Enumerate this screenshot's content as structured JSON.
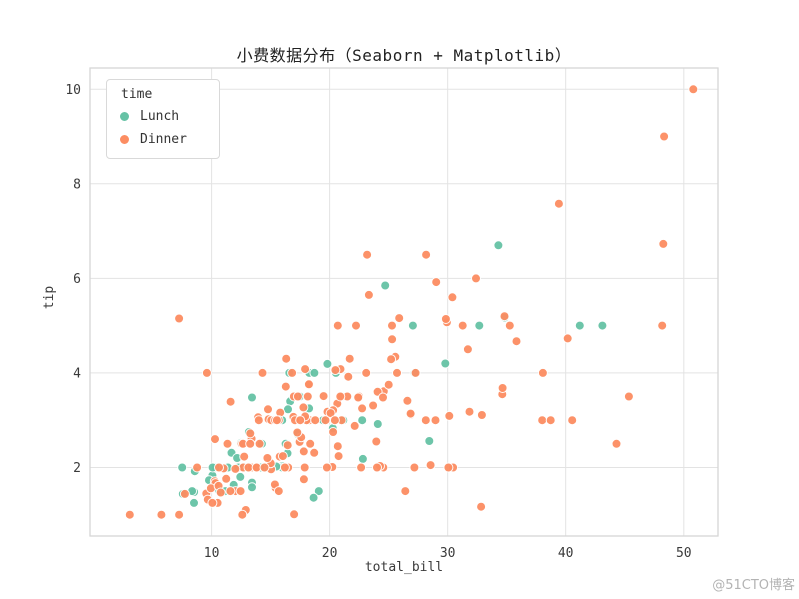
{
  "page": {
    "watermark": "@51CTO博客"
  },
  "chart_data": {
    "type": "scatter",
    "title": "小费数据分布（Seaborn + Matplotlib）",
    "xlabel": "total_bill",
    "ylabel": "tip",
    "xlim": [
      -0.3,
      52.9
    ],
    "ylim": [
      0.55,
      10.45
    ],
    "x_ticks": [
      10,
      20,
      30,
      40,
      50
    ],
    "y_ticks": [
      2,
      4,
      6,
      8,
      10
    ],
    "grid": true,
    "legend": {
      "title": "time",
      "position": "upper-left"
    },
    "series": [
      {
        "name": "Lunch",
        "color": "#66c2a5",
        "points": [
          [
            27.2,
            4.0
          ],
          [
            22.76,
            3.0
          ],
          [
            17.29,
            2.71
          ],
          [
            19.44,
            3.0
          ],
          [
            16.66,
            3.4
          ],
          [
            10.07,
            1.83
          ],
          [
            32.68,
            5.0
          ],
          [
            15.98,
            2.03
          ],
          [
            34.83,
            5.17
          ],
          [
            13.03,
            2.0
          ],
          [
            18.28,
            4.0
          ],
          [
            24.71,
            5.85
          ],
          [
            21.16,
            3.0
          ],
          [
            10.65,
            1.5
          ],
          [
            12.43,
            1.8
          ],
          [
            24.08,
            2.92
          ],
          [
            11.69,
            2.31
          ],
          [
            13.42,
            1.68
          ],
          [
            14.26,
            2.5
          ],
          [
            15.95,
            2.0
          ],
          [
            12.48,
            2.52
          ],
          [
            29.8,
            4.2
          ],
          [
            8.52,
            1.48
          ],
          [
            14.52,
            2.0
          ],
          [
            11.38,
            2.0
          ],
          [
            22.82,
            2.18
          ],
          [
            19.08,
            1.5
          ],
          [
            20.27,
            2.83
          ],
          [
            11.17,
            1.5
          ],
          [
            12.26,
            2.0
          ],
          [
            18.26,
            3.25
          ],
          [
            8.51,
            1.25
          ],
          [
            10.33,
            2.0
          ],
          [
            14.15,
            2.0
          ],
          [
            16.0,
            2.0
          ],
          [
            13.16,
            2.75
          ],
          [
            17.47,
            3.5
          ],
          [
            34.3,
            6.7
          ],
          [
            41.19,
            5.0
          ],
          [
            27.05,
            5.0
          ],
          [
            16.43,
            2.3
          ],
          [
            8.35,
            1.5
          ],
          [
            18.64,
            1.36
          ],
          [
            11.87,
            1.63
          ],
          [
            9.78,
            1.73
          ],
          [
            7.51,
            2.0
          ],
          [
            19.81,
            4.19
          ],
          [
            28.44,
            2.56
          ],
          [
            15.48,
            2.02
          ],
          [
            16.58,
            4.0
          ],
          [
            7.56,
            1.44
          ],
          [
            10.34,
            2.0
          ],
          [
            43.11,
            5.0
          ],
          [
            13.0,
            2.0
          ],
          [
            13.51,
            2.0
          ],
          [
            18.71,
            4.0
          ],
          [
            12.74,
            2.01
          ],
          [
            13.0,
            2.0
          ],
          [
            16.4,
            2.5
          ],
          [
            20.53,
            4.0
          ],
          [
            16.47,
            3.23
          ],
          [
            12.16,
            2.2
          ],
          [
            13.42,
            3.48
          ],
          [
            8.58,
            1.92
          ],
          [
            15.98,
            3.0
          ],
          [
            13.42,
            1.58
          ],
          [
            16.27,
            2.5
          ],
          [
            10.09,
            2.0
          ]
        ]
      },
      {
        "name": "Dinner",
        "color": "#fc8d62",
        "points": [
          [
            16.99,
            1.01
          ],
          [
            10.34,
            1.66
          ],
          [
            21.01,
            3.5
          ],
          [
            23.68,
            3.31
          ],
          [
            24.59,
            3.61
          ],
          [
            25.29,
            4.71
          ],
          [
            8.77,
            2.0
          ],
          [
            26.88,
            3.12
          ],
          [
            15.04,
            1.96
          ],
          [
            14.78,
            3.23
          ],
          [
            10.27,
            1.71
          ],
          [
            35.26,
            5.0
          ],
          [
            15.42,
            1.57
          ],
          [
            18.43,
            3.0
          ],
          [
            14.83,
            3.02
          ],
          [
            21.58,
            3.92
          ],
          [
            10.33,
            1.67
          ],
          [
            16.29,
            3.71
          ],
          [
            16.97,
            3.5
          ],
          [
            20.65,
            3.35
          ],
          [
            17.92,
            4.08
          ],
          [
            20.29,
            2.75
          ],
          [
            15.77,
            2.23
          ],
          [
            39.42,
            7.58
          ],
          [
            19.82,
            3.18
          ],
          [
            17.81,
            2.34
          ],
          [
            13.37,
            2.0
          ],
          [
            12.69,
            2.0
          ],
          [
            21.7,
            4.3
          ],
          [
            19.65,
            3.0
          ],
          [
            9.55,
            1.45
          ],
          [
            18.35,
            2.5
          ],
          [
            15.06,
            3.0
          ],
          [
            20.69,
            2.45
          ],
          [
            17.78,
            3.27
          ],
          [
            24.06,
            3.6
          ],
          [
            16.31,
            2.0
          ],
          [
            16.93,
            3.07
          ],
          [
            18.69,
            2.31
          ],
          [
            31.27,
            5.0
          ],
          [
            16.04,
            2.24
          ],
          [
            17.46,
            2.54
          ],
          [
            13.94,
            3.06
          ],
          [
            9.68,
            1.32
          ],
          [
            30.4,
            5.6
          ],
          [
            18.29,
            3.0
          ],
          [
            22.23,
            5.0
          ],
          [
            32.4,
            6.0
          ],
          [
            28.55,
            2.05
          ],
          [
            18.04,
            3.0
          ],
          [
            12.54,
            2.5
          ],
          [
            10.29,
            2.6
          ],
          [
            34.81,
            5.2
          ],
          [
            9.94,
            1.56
          ],
          [
            25.56,
            4.34
          ],
          [
            19.49,
            3.51
          ],
          [
            38.01,
            3.0
          ],
          [
            26.41,
            1.5
          ],
          [
            11.24,
            1.76
          ],
          [
            48.27,
            6.73
          ],
          [
            20.29,
            3.21
          ],
          [
            13.81,
            2.0
          ],
          [
            11.02,
            1.98
          ],
          [
            18.29,
            3.76
          ],
          [
            17.59,
            2.64
          ],
          [
            20.08,
            3.15
          ],
          [
            16.45,
            2.47
          ],
          [
            3.07,
            1.0
          ],
          [
            20.23,
            2.01
          ],
          [
            15.01,
            2.09
          ],
          [
            12.02,
            1.97
          ],
          [
            17.07,
            3.0
          ],
          [
            26.86,
            3.14
          ],
          [
            25.28,
            5.0
          ],
          [
            14.73,
            2.2
          ],
          [
            10.51,
            1.25
          ],
          [
            17.92,
            3.08
          ],
          [
            28.97,
            3.0
          ],
          [
            22.49,
            3.5
          ],
          [
            5.75,
            1.0
          ],
          [
            16.32,
            4.3
          ],
          [
            22.75,
            3.25
          ],
          [
            40.17,
            4.73
          ],
          [
            27.28,
            4.0
          ],
          [
            12.03,
            1.5
          ],
          [
            21.01,
            3.0
          ],
          [
            12.46,
            1.5
          ],
          [
            11.35,
            2.5
          ],
          [
            15.38,
            3.0
          ],
          [
            44.3,
            2.5
          ],
          [
            22.42,
            3.48
          ],
          [
            20.92,
            4.08
          ],
          [
            15.36,
            1.64
          ],
          [
            20.49,
            4.06
          ],
          [
            25.21,
            4.29
          ],
          [
            18.24,
            3.76
          ],
          [
            14.31,
            4.0
          ],
          [
            14.0,
            3.0
          ],
          [
            7.25,
            1.0
          ],
          [
            38.07,
            4.0
          ],
          [
            23.95,
            2.55
          ],
          [
            25.71,
            4.0
          ],
          [
            17.31,
            3.5
          ],
          [
            29.93,
            5.07
          ],
          [
            14.07,
            2.5
          ],
          [
            13.13,
            2.0
          ],
          [
            17.26,
            2.74
          ],
          [
            24.55,
            2.0
          ],
          [
            19.77,
            2.0
          ],
          [
            29.85,
            5.14
          ],
          [
            48.17,
            5.0
          ],
          [
            25.0,
            3.75
          ],
          [
            13.39,
            2.61
          ],
          [
            16.49,
            2.0
          ],
          [
            21.5,
            3.5
          ],
          [
            12.66,
            2.5
          ],
          [
            16.21,
            2.0
          ],
          [
            13.81,
            2.0
          ],
          [
            17.51,
            3.0
          ],
          [
            24.52,
            3.48
          ],
          [
            20.76,
            2.24
          ],
          [
            31.71,
            4.5
          ],
          [
            10.59,
            1.61
          ],
          [
            10.63,
            2.0
          ],
          [
            50.81,
            10.0
          ],
          [
            15.81,
            3.16
          ],
          [
            7.25,
            5.15
          ],
          [
            31.85,
            3.18
          ],
          [
            16.82,
            4.0
          ],
          [
            32.9,
            3.11
          ],
          [
            17.89,
            2.0
          ],
          [
            14.48,
            2.0
          ],
          [
            9.6,
            4.0
          ],
          [
            34.63,
            3.55
          ],
          [
            34.65,
            3.68
          ],
          [
            23.33,
            5.65
          ],
          [
            45.35,
            3.5
          ],
          [
            23.17,
            6.5
          ],
          [
            40.55,
            3.0
          ],
          [
            20.69,
            5.0
          ],
          [
            20.9,
            3.5
          ],
          [
            30.46,
            2.0
          ],
          [
            18.15,
            3.5
          ],
          [
            23.1,
            4.0
          ],
          [
            15.69,
            1.5
          ],
          [
            26.59,
            3.41
          ],
          [
            38.73,
            3.0
          ],
          [
            24.27,
            2.03
          ],
          [
            12.76,
            2.23
          ],
          [
            30.06,
            2.0
          ],
          [
            25.89,
            5.16
          ],
          [
            48.33,
            9.0
          ],
          [
            13.27,
            2.5
          ],
          [
            28.17,
            6.5
          ],
          [
            12.9,
            1.1
          ],
          [
            28.15,
            3.0
          ],
          [
            11.59,
            1.5
          ],
          [
            7.74,
            1.44
          ],
          [
            30.14,
            3.09
          ],
          [
            20.45,
            3.0
          ],
          [
            13.28,
            2.72
          ],
          [
            22.12,
            2.88
          ],
          [
            24.01,
            2.0
          ],
          [
            15.69,
            3.0
          ],
          [
            11.61,
            3.39
          ],
          [
            10.77,
            1.47
          ],
          [
            15.53,
            3.0
          ],
          [
            10.07,
            1.25
          ],
          [
            12.6,
            1.0
          ],
          [
            32.83,
            1.17
          ],
          [
            35.83,
            4.67
          ],
          [
            29.03,
            5.92
          ],
          [
            27.18,
            2.0
          ],
          [
            22.67,
            2.0
          ],
          [
            17.82,
            1.75
          ],
          [
            18.78,
            3.0
          ]
        ]
      }
    ]
  }
}
